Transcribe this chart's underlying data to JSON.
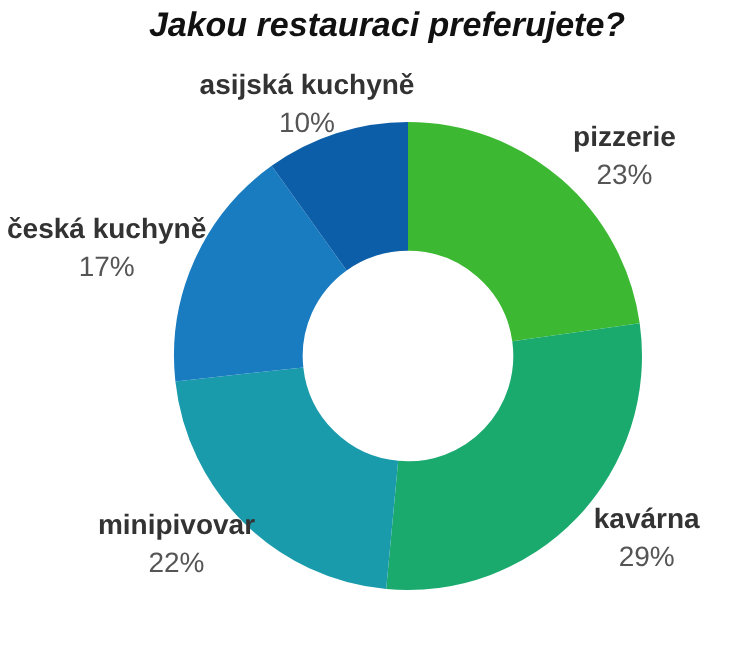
{
  "chart_data": {
    "type": "donut",
    "title": "Jakou restauraci preferujete?",
    "categories": [
      "pizzerie",
      "kavárna",
      "minipivovar",
      "česká kuchyně",
      "asijská kuchyně"
    ],
    "values": [
      23,
      29,
      22,
      17,
      10
    ],
    "colors": [
      "#3cb832",
      "#1aaa6e",
      "#1a9bac",
      "#1a7cc0",
      "#0d5ea8"
    ],
    "value_labels": [
      "23%",
      "29%",
      "22%",
      "17%",
      "10%"
    ],
    "legend": false
  }
}
